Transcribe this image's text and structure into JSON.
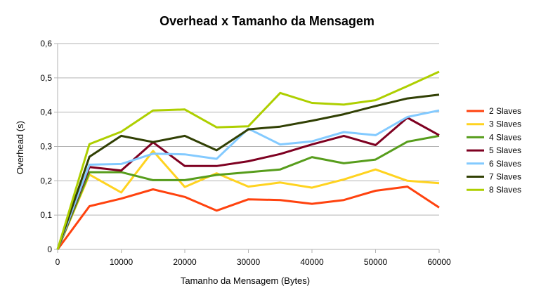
{
  "chart_data": {
    "type": "line",
    "title": "Overhead x Tamanho da Mensagem",
    "xlabel": "Tamanho da Mensagem (Bytes)",
    "ylabel": "Overhead (s)",
    "xlim": [
      0,
      60000
    ],
    "ylim": [
      0,
      0.6
    ],
    "x_ticks": [
      "0",
      "10000",
      "20000",
      "30000",
      "40000",
      "50000",
      "60000"
    ],
    "y_ticks": [
      "0",
      "0,1",
      "0,2",
      "0,3",
      "0,4",
      "0,5",
      "0,6"
    ],
    "grid": "horizontal",
    "legend_position": "right",
    "x": [
      0,
      5000,
      10000,
      15000,
      20000,
      25000,
      30000,
      35000,
      40000,
      45000,
      50000,
      55000,
      60000
    ],
    "series": [
      {
        "name": "2 Slaves",
        "color": "#ff420e",
        "values": [
          0,
          0.126,
          0.148,
          0.175,
          0.153,
          0.113,
          0.146,
          0.144,
          0.133,
          0.144,
          0.171,
          0.183,
          0.122
        ]
      },
      {
        "name": "3 Slaves",
        "color": "#ffd320",
        "values": [
          0,
          0.218,
          0.166,
          0.287,
          0.182,
          0.222,
          0.183,
          0.195,
          0.18,
          0.204,
          0.233,
          0.2,
          0.193
        ]
      },
      {
        "name": "4 Slaves",
        "color": "#579d1c",
        "values": [
          0,
          0.225,
          0.225,
          0.202,
          0.202,
          0.217,
          0.225,
          0.233,
          0.269,
          0.251,
          0.262,
          0.314,
          0.331
        ]
      },
      {
        "name": "5 Slaves",
        "color": "#7e0021",
        "values": [
          0,
          0.24,
          0.23,
          0.312,
          0.243,
          0.243,
          0.257,
          0.278,
          0.306,
          0.331,
          0.304,
          0.384,
          0.333
        ]
      },
      {
        "name": "6 Slaves",
        "color": "#83caff",
        "values": [
          0,
          0.247,
          0.249,
          0.279,
          0.277,
          0.264,
          0.352,
          0.306,
          0.315,
          0.342,
          0.333,
          0.386,
          0.405
        ]
      },
      {
        "name": "7 Slaves",
        "color": "#314004",
        "values": [
          0,
          0.27,
          0.331,
          0.313,
          0.331,
          0.289,
          0.35,
          0.358,
          0.375,
          0.394,
          0.418,
          0.44,
          0.451
        ]
      },
      {
        "name": "8 Slaves",
        "color": "#aecf00",
        "values": [
          0,
          0.307,
          0.343,
          0.405,
          0.408,
          0.356,
          0.359,
          0.456,
          0.427,
          0.422,
          0.435,
          0.476,
          0.518
        ]
      }
    ]
  }
}
